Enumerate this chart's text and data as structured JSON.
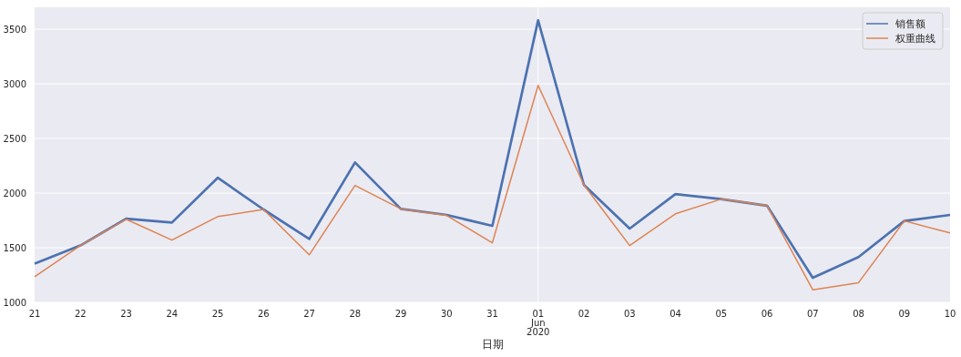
{
  "chart_data": {
    "type": "line",
    "xlabel": "日期",
    "x": [
      "2020-05-21",
      "2020-05-22",
      "2020-05-23",
      "2020-05-24",
      "2020-05-25",
      "2020-05-26",
      "2020-05-27",
      "2020-05-28",
      "2020-05-29",
      "2020-05-30",
      "2020-05-31",
      "2020-06-01",
      "2020-06-02",
      "2020-06-03",
      "2020-06-04",
      "2020-06-05",
      "2020-06-06",
      "2020-06-07",
      "2020-06-08",
      "2020-06-09",
      "2020-06-10"
    ],
    "series": [
      {
        "name": "销售额",
        "color": "#4c72b0",
        "values": [
          1355,
          1520,
          1765,
          1730,
          2140,
          1850,
          1580,
          2280,
          1855,
          1800,
          1700,
          3580,
          2075,
          1675,
          1990,
          1945,
          1885,
          1225,
          1415,
          1745,
          1800
        ]
      },
      {
        "name": "权重曲线",
        "color": "#dd8452",
        "values": [
          1235,
          1520,
          1760,
          1570,
          1785,
          1850,
          1435,
          2070,
          1855,
          1795,
          1545,
          2985,
          2075,
          1520,
          1810,
          1945,
          1885,
          1115,
          1180,
          1745,
          1635
        ]
      }
    ],
    "xlim": [
      "2020-05-21",
      "2020-06-10"
    ],
    "xticks": [
      {
        "value": "2020-05-21",
        "label": "21"
      },
      {
        "value": "2020-05-22",
        "label": "22"
      },
      {
        "value": "2020-05-23",
        "label": "23"
      },
      {
        "value": "2020-05-24",
        "label": "24"
      },
      {
        "value": "2020-05-25",
        "label": "25"
      },
      {
        "value": "2020-05-26",
        "label": "26"
      },
      {
        "value": "2020-05-27",
        "label": "27"
      },
      {
        "value": "2020-05-28",
        "label": "28"
      },
      {
        "value": "2020-05-29",
        "label": "29"
      },
      {
        "value": "2020-05-30",
        "label": "30"
      },
      {
        "value": "2020-05-31",
        "label": "31"
      },
      {
        "value": "2020-06-01",
        "label": "01\nJun\n2020"
      },
      {
        "value": "2020-06-02",
        "label": "02"
      },
      {
        "value": "2020-06-03",
        "label": "03"
      },
      {
        "value": "2020-06-04",
        "label": "04"
      },
      {
        "value": "2020-06-05",
        "label": "05"
      },
      {
        "value": "2020-06-06",
        "label": "06"
      },
      {
        "value": "2020-06-07",
        "label": "07"
      },
      {
        "value": "2020-06-08",
        "label": "08"
      },
      {
        "value": "2020-06-09",
        "label": "09"
      },
      {
        "value": "2020-06-10",
        "label": "10"
      }
    ],
    "ylim": [
      1000,
      3700
    ],
    "yticks": [
      1000,
      1500,
      2000,
      2500,
      3000,
      3500
    ],
    "ref_lines": [
      {
        "axis": "x",
        "value": "2020-06-01",
        "color": "#ffffff"
      }
    ],
    "grid": "y",
    "legend": "top right",
    "line_style": "solid",
    "marker": "none"
  }
}
